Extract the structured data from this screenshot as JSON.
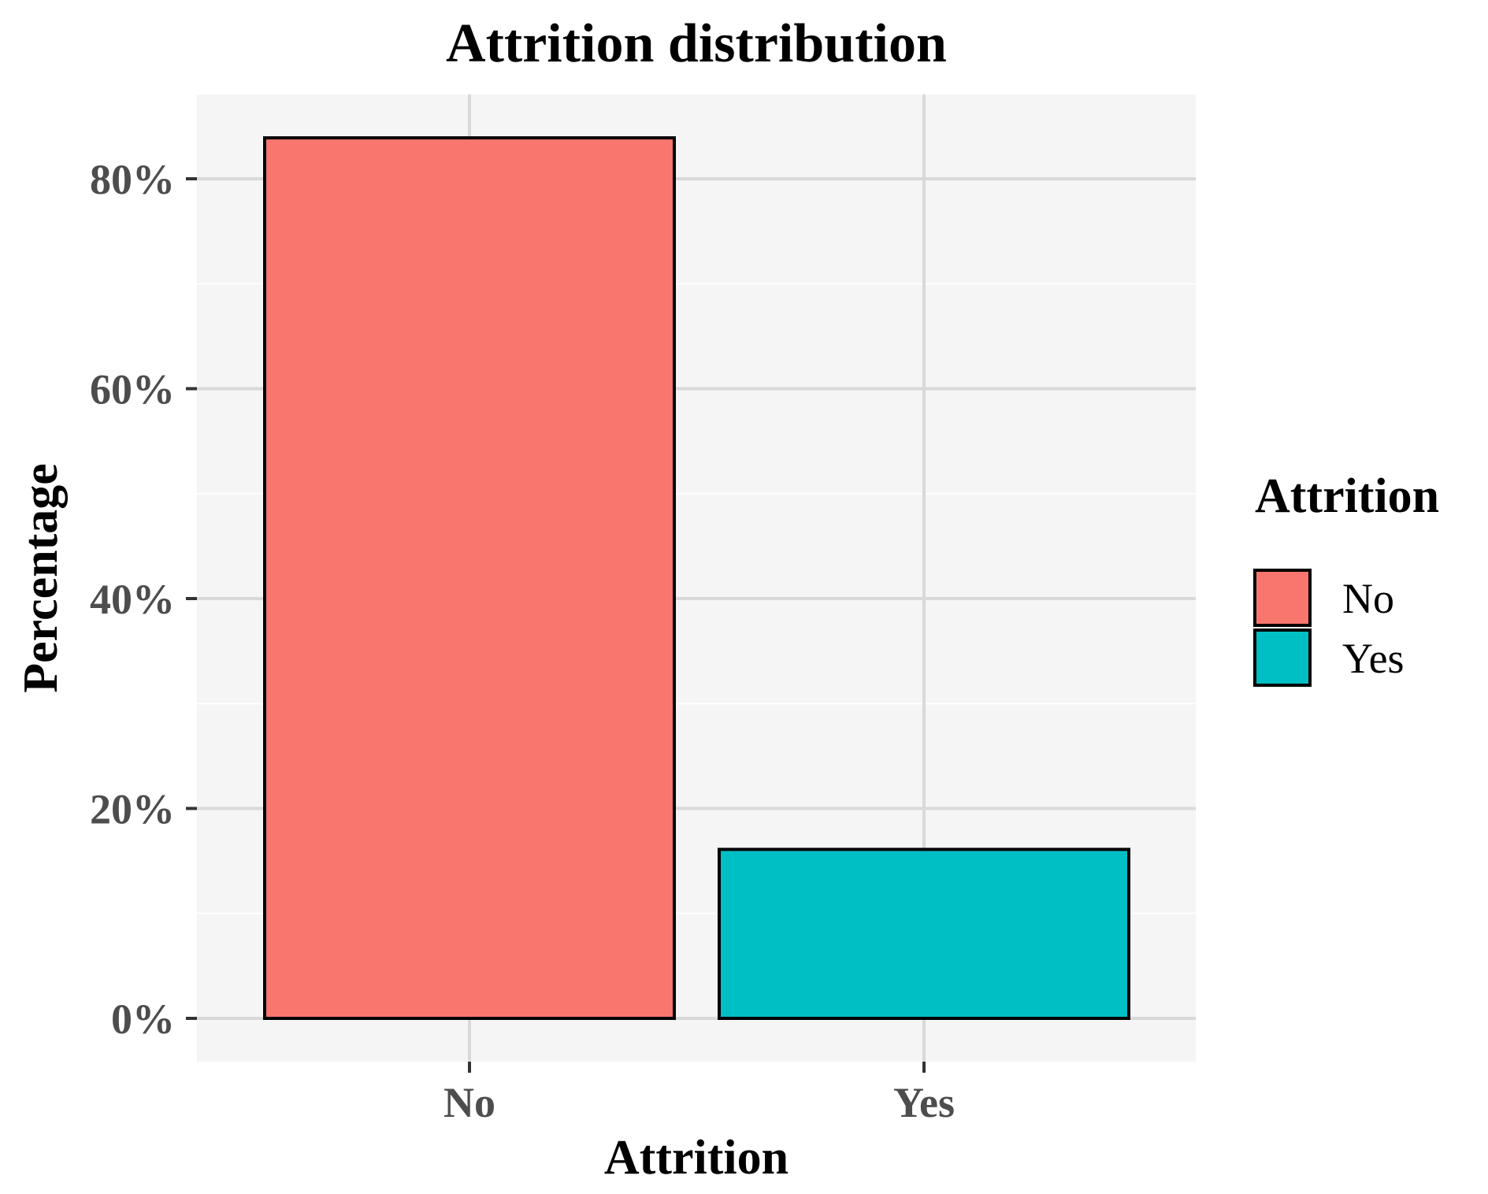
{
  "chart_data": {
    "type": "bar",
    "title": "Attrition distribution",
    "xlabel": "Attrition",
    "ylabel": "Percentage",
    "categories": [
      "No",
      "Yes"
    ],
    "values": [
      83.9,
      16.1
    ],
    "value_unit": "%",
    "ylim": [
      -5,
      92
    ],
    "y_ticks": [
      0,
      20,
      40,
      60,
      80
    ],
    "y_tick_labels": [
      "0%",
      "20%",
      "40%",
      "60%",
      "80%"
    ],
    "grid": true,
    "legend": {
      "title": "Attrition",
      "placement": "right",
      "entries": [
        {
          "label": "No",
          "color": "#F8766D"
        },
        {
          "label": "Yes",
          "color": "#00BFC4"
        }
      ]
    },
    "colors": {
      "panel_background": "#EBEBEB",
      "gridline": "#FFFFFF",
      "bar_outline": "#000000"
    }
  }
}
